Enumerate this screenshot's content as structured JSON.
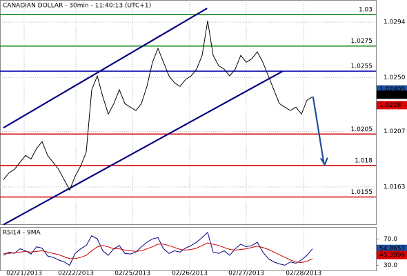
{
  "chart_data": [
    {
      "type": "line",
      "title": "CANADIAN DOLLAR - 30min - 11:40:13 (UTC+1)",
      "x": [
        0,
        1,
        2,
        3,
        4,
        5,
        6,
        7,
        8,
        9,
        10,
        11,
        12,
        13,
        14,
        15,
        16,
        17,
        18,
        19,
        20,
        21,
        22,
        23,
        24,
        25,
        26,
        27,
        28,
        29,
        30,
        31,
        32,
        33,
        34,
        35,
        36,
        37,
        38,
        39,
        40,
        41,
        42,
        43,
        44,
        45,
        46,
        47,
        48,
        49,
        50,
        51,
        52,
        53,
        54,
        55,
        56
      ],
      "series": [
        {
          "color": "#000000",
          "values": [
            1.01687,
            1.01742,
            1.0177,
            1.01825,
            1.0188,
            1.01852,
            1.01935,
            1.0199,
            1.0188,
            1.01825,
            1.0177,
            1.01687,
            1.01605,
            1.01715,
            1.01797,
            1.01907,
            1.02402,
            1.02512,
            1.02347,
            1.02209,
            1.02292,
            1.02402,
            1.02292,
            1.02264,
            1.02237,
            1.02292,
            1.02429,
            1.02621,
            1.02731,
            1.02621,
            1.02512,
            1.02457,
            1.02429,
            1.02484,
            1.02512,
            1.02566,
            1.02676,
            1.02951,
            1.02676,
            1.02594,
            1.02566,
            1.02512,
            1.02566,
            1.02676,
            1.02621,
            1.02649,
            1.02704,
            1.02621,
            1.02512,
            1.02402,
            1.02292,
            1.02264,
            1.02237,
            1.02264,
            1.02209,
            1.02319,
            1.02347
          ]
        }
      ],
      "xlim": [
        -0.625,
        67.5
      ],
      "xticks": [
        {
          "value": 3.75,
          "label": "02/21/2013"
        },
        {
          "value": 13.125,
          "label": "02/22/2013"
        },
        {
          "value": 23.4,
          "label": "02/25/2013"
        },
        {
          "value": 33.75,
          "label": "02/26/2013"
        },
        {
          "value": 44,
          "label": "02/27/2013"
        },
        {
          "value": 54.4,
          "label": "02/28/2013"
        }
      ],
      "ylim": [
        1.01333,
        1.03116
      ],
      "yticks": [
        1.0294,
        {
          "value": 1.025,
          "label": "1.0250"
        },
        1.0207,
        1.0163
      ],
      "grid": true,
      "levels": [
        {
          "value": 1.03,
          "color": "#008000"
        },
        {
          "value": 1.0275,
          "color": "#008000"
        },
        {
          "value": 1.0255,
          "color": "#0000aa"
        },
        {
          "value": 1.0205,
          "color": "#cc0000"
        },
        {
          "value": 1.018,
          "color": "#cc0000"
        },
        {
          "value": 1.0155,
          "color": "#cc0000"
        }
      ],
      "trendlines": [
        {
          "x": [
            0,
            36.9
          ],
          "y": [
            1.021,
            1.0305
          ],
          "color": "#000080"
        },
        {
          "x": [
            0,
            50.6
          ],
          "y": [
            1.0133,
            1.0255
          ],
          "color": "#000080"
        },
        {
          "x": [
            56.1,
            58.1
          ],
          "y": [
            1.02347,
            1.01808
          ],
          "color": "#1f4fa0"
        }
      ],
      "price_tags": [
        {
          "value": 1.02405,
          "color": "#1f4fa0"
        },
        {
          "value": 1.02363,
          "color": "#000000"
        },
        {
          "value": 1.0228,
          "color": "#e00000"
        }
      ]
    },
    {
      "type": "line",
      "title": "RSI14 - 9MA",
      "x": [
        0,
        1,
        2,
        3,
        4,
        5,
        6,
        7,
        8,
        9,
        10,
        11,
        12,
        13,
        14,
        15,
        16,
        17,
        18,
        19,
        20,
        21,
        22,
        23,
        24,
        25,
        26,
        27,
        28,
        29,
        30,
        31,
        32,
        33,
        34,
        35,
        36,
        37,
        38,
        39,
        40,
        41,
        42,
        43,
        44,
        45,
        46,
        47,
        48,
        49,
        50,
        51,
        52,
        53,
        54,
        55,
        56
      ],
      "series": [
        {
          "color": "#000080",
          "values": [
            45,
            50,
            48,
            55,
            52,
            47,
            58,
            56,
            44,
            42,
            38,
            35,
            30,
            48,
            55,
            60,
            75,
            70,
            52,
            45,
            55,
            60,
            48,
            47,
            50,
            58,
            65,
            70,
            72,
            55,
            48,
            52,
            50,
            56,
            60,
            65,
            72,
            80,
            50,
            48,
            52,
            45,
            55,
            62,
            58,
            60,
            65,
            50,
            40,
            35,
            32,
            30,
            35,
            33,
            38,
            45,
            55
          ]
        },
        {
          "color": "#cc0000",
          "values": [
            48,
            48,
            49,
            50,
            51,
            50,
            51,
            52,
            50,
            48,
            46,
            43,
            40,
            40,
            42,
            45,
            52,
            58,
            60,
            58,
            55,
            55,
            53,
            52,
            51,
            52,
            55,
            58,
            62,
            62,
            60,
            57,
            54,
            53,
            54,
            56,
            60,
            64,
            62,
            60,
            57,
            54,
            53,
            54,
            55,
            57,
            59,
            57,
            54,
            50,
            46,
            42,
            38,
            35,
            34,
            36,
            40
          ]
        }
      ],
      "xlim": [
        -0.625,
        67.5
      ],
      "ylim": [
        22,
        87.1
      ],
      "yticks": [
        {
          "value": 70,
          "label": "70.0"
        },
        {
          "value": 30,
          "label": "30.0"
        }
      ],
      "price_tags": [
        {
          "value": 54.8657,
          "color": "#1f4fa0"
        },
        {
          "value": 45.3996,
          "color": "#e00000"
        }
      ]
    }
  ]
}
